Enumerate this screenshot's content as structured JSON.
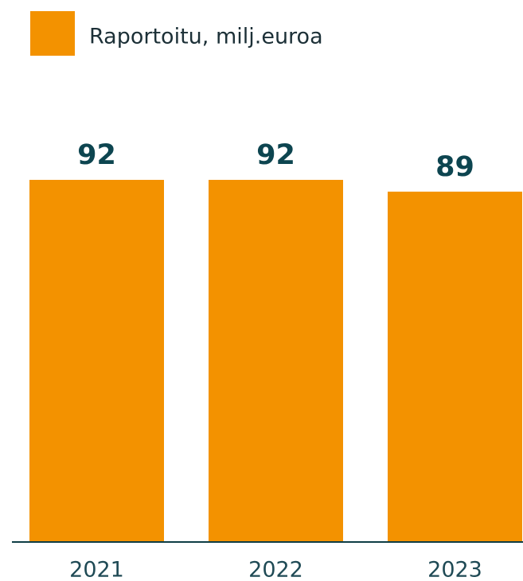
{
  "chart_data": {
    "type": "bar",
    "categories": [
      "2021",
      "2022",
      "2023"
    ],
    "series": [
      {
        "name": "Raportoitu, milj.euroa",
        "color": "#f39200",
        "values": [
          92,
          92,
          89
        ]
      }
    ]
  }
}
